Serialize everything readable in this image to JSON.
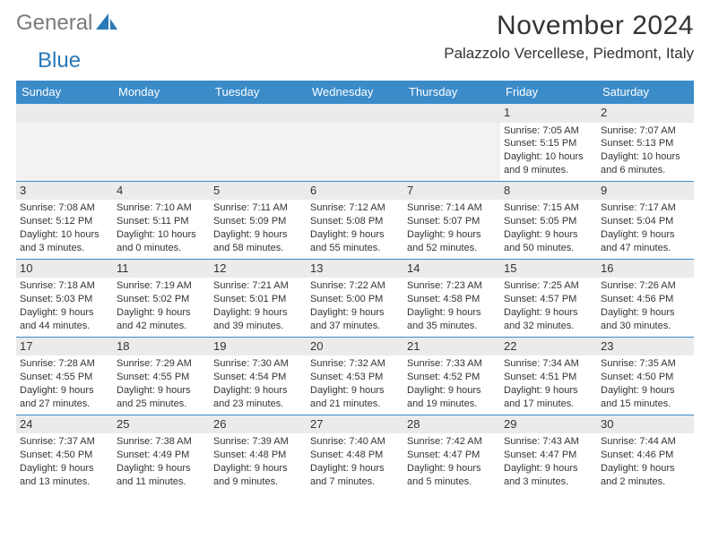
{
  "brand": {
    "part1": "General",
    "part2": "Blue"
  },
  "header": {
    "title": "November 2024",
    "location": "Palazzolo Vercellese, Piedmont, Italy"
  },
  "colors": {
    "header_bar": "#3b8bc9",
    "header_text": "#ffffff",
    "daynum_bg": "#ebebeb",
    "border": "#3b8bc9",
    "body_text": "#333333",
    "brand_gray": "#7a7a7a",
    "brand_blue": "#2a7ab8"
  },
  "weekdays": [
    "Sunday",
    "Monday",
    "Tuesday",
    "Wednesday",
    "Thursday",
    "Friday",
    "Saturday"
  ],
  "weeks": [
    [
      null,
      null,
      null,
      null,
      null,
      {
        "d": "1",
        "sr": "7:05 AM",
        "ss": "5:15 PM",
        "dl": "10 hours",
        "dl2": "and 9 minutes."
      },
      {
        "d": "2",
        "sr": "7:07 AM",
        "ss": "5:13 PM",
        "dl": "10 hours",
        "dl2": "and 6 minutes."
      }
    ],
    [
      {
        "d": "3",
        "sr": "7:08 AM",
        "ss": "5:12 PM",
        "dl": "10 hours",
        "dl2": "and 3 minutes."
      },
      {
        "d": "4",
        "sr": "7:10 AM",
        "ss": "5:11 PM",
        "dl": "10 hours",
        "dl2": "and 0 minutes."
      },
      {
        "d": "5",
        "sr": "7:11 AM",
        "ss": "5:09 PM",
        "dl": "9 hours",
        "dl2": "and 58 minutes."
      },
      {
        "d": "6",
        "sr": "7:12 AM",
        "ss": "5:08 PM",
        "dl": "9 hours",
        "dl2": "and 55 minutes."
      },
      {
        "d": "7",
        "sr": "7:14 AM",
        "ss": "5:07 PM",
        "dl": "9 hours",
        "dl2": "and 52 minutes."
      },
      {
        "d": "8",
        "sr": "7:15 AM",
        "ss": "5:05 PM",
        "dl": "9 hours",
        "dl2": "and 50 minutes."
      },
      {
        "d": "9",
        "sr": "7:17 AM",
        "ss": "5:04 PM",
        "dl": "9 hours",
        "dl2": "and 47 minutes."
      }
    ],
    [
      {
        "d": "10",
        "sr": "7:18 AM",
        "ss": "5:03 PM",
        "dl": "9 hours",
        "dl2": "and 44 minutes."
      },
      {
        "d": "11",
        "sr": "7:19 AM",
        "ss": "5:02 PM",
        "dl": "9 hours",
        "dl2": "and 42 minutes."
      },
      {
        "d": "12",
        "sr": "7:21 AM",
        "ss": "5:01 PM",
        "dl": "9 hours",
        "dl2": "and 39 minutes."
      },
      {
        "d": "13",
        "sr": "7:22 AM",
        "ss": "5:00 PM",
        "dl": "9 hours",
        "dl2": "and 37 minutes."
      },
      {
        "d": "14",
        "sr": "7:23 AM",
        "ss": "4:58 PM",
        "dl": "9 hours",
        "dl2": "and 35 minutes."
      },
      {
        "d": "15",
        "sr": "7:25 AM",
        "ss": "4:57 PM",
        "dl": "9 hours",
        "dl2": "and 32 minutes."
      },
      {
        "d": "16",
        "sr": "7:26 AM",
        "ss": "4:56 PM",
        "dl": "9 hours",
        "dl2": "and 30 minutes."
      }
    ],
    [
      {
        "d": "17",
        "sr": "7:28 AM",
        "ss": "4:55 PM",
        "dl": "9 hours",
        "dl2": "and 27 minutes."
      },
      {
        "d": "18",
        "sr": "7:29 AM",
        "ss": "4:55 PM",
        "dl": "9 hours",
        "dl2": "and 25 minutes."
      },
      {
        "d": "19",
        "sr": "7:30 AM",
        "ss": "4:54 PM",
        "dl": "9 hours",
        "dl2": "and 23 minutes."
      },
      {
        "d": "20",
        "sr": "7:32 AM",
        "ss": "4:53 PM",
        "dl": "9 hours",
        "dl2": "and 21 minutes."
      },
      {
        "d": "21",
        "sr": "7:33 AM",
        "ss": "4:52 PM",
        "dl": "9 hours",
        "dl2": "and 19 minutes."
      },
      {
        "d": "22",
        "sr": "7:34 AM",
        "ss": "4:51 PM",
        "dl": "9 hours",
        "dl2": "and 17 minutes."
      },
      {
        "d": "23",
        "sr": "7:35 AM",
        "ss": "4:50 PM",
        "dl": "9 hours",
        "dl2": "and 15 minutes."
      }
    ],
    [
      {
        "d": "24",
        "sr": "7:37 AM",
        "ss": "4:50 PM",
        "dl": "9 hours",
        "dl2": "and 13 minutes."
      },
      {
        "d": "25",
        "sr": "7:38 AM",
        "ss": "4:49 PM",
        "dl": "9 hours",
        "dl2": "and 11 minutes."
      },
      {
        "d": "26",
        "sr": "7:39 AM",
        "ss": "4:48 PM",
        "dl": "9 hours",
        "dl2": "and 9 minutes."
      },
      {
        "d": "27",
        "sr": "7:40 AM",
        "ss": "4:48 PM",
        "dl": "9 hours",
        "dl2": "and 7 minutes."
      },
      {
        "d": "28",
        "sr": "7:42 AM",
        "ss": "4:47 PM",
        "dl": "9 hours",
        "dl2": "and 5 minutes."
      },
      {
        "d": "29",
        "sr": "7:43 AM",
        "ss": "4:47 PM",
        "dl": "9 hours",
        "dl2": "and 3 minutes."
      },
      {
        "d": "30",
        "sr": "7:44 AM",
        "ss": "4:46 PM",
        "dl": "9 hours",
        "dl2": "and 2 minutes."
      }
    ]
  ],
  "labels": {
    "sunrise": "Sunrise:",
    "sunset": "Sunset:",
    "daylight": "Daylight:"
  }
}
